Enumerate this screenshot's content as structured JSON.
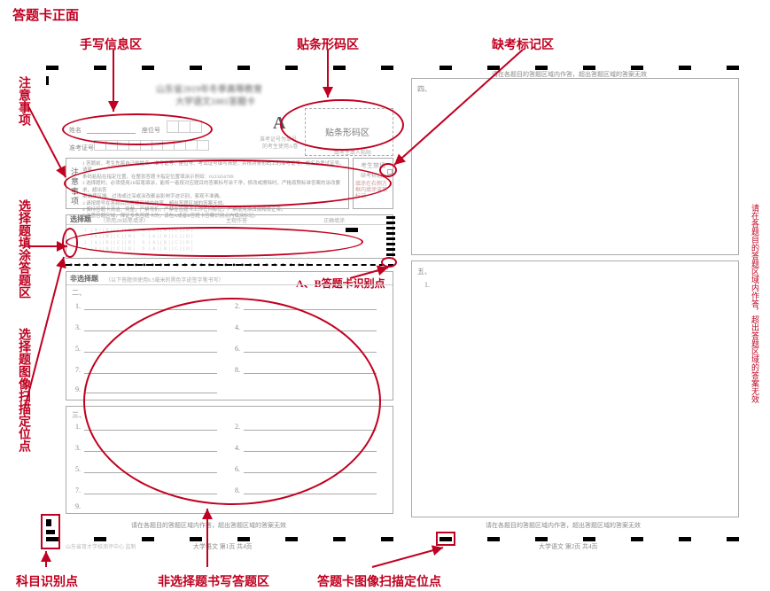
{
  "colors": {
    "accent": "#c00020",
    "box": "#aaaaaa",
    "text_light": "#888888"
  },
  "title": "答题卡正面",
  "callouts": {
    "handwrite": "手写信息区",
    "barcode": "贴条形码区",
    "absent": "缺考标记区",
    "notice": "注意事项",
    "choice_fill": "选择题填涂答题区",
    "choice_scan": "选择题图像扫描定位点",
    "subject_id": "科目识别点",
    "nonchoice_write": "非选择题书写答题区",
    "sheet_scan": "答题卡图像扫描定位点",
    "ab_id": "A、B答题卡识别点"
  },
  "sheet": {
    "exam_title_1": "山东省2019年冬季高等教育",
    "exam_title_2": "大学语文1001答题卡",
    "a_label": "A",
    "a_sub1": "准考证号为单号",
    "a_sub2": "的考生使用A卷",
    "barcode_box": "贴条形码区",
    "barcode_sub": "由考生本人粘贴",
    "name_label": "姓名",
    "seat_label": "座位号",
    "exam_id_label": "准考证号",
    "notice_header": "注意事项",
    "absent_label": "考生禁填",
    "absent_sub1": "缺考标记",
    "absent_sub2": "填涂在右侧方框内填涂该项标记",
    "choice_header": "选择题",
    "choice_sub": "（须用2B铅笔填涂）",
    "col_a": "主观作答",
    "col_b": "正确填涂",
    "nonchoice_header": "非选择题",
    "nonchoice_sub": "（以下答题须使用0.5毫米的黑色字迹签字笔书写）",
    "q2": "二、",
    "q3": "三、",
    "q4": "四、",
    "q5": "五、",
    "q5_1": "1.",
    "warning": "请在各题目的答题区域内作答，超出答题区域的答案无效",
    "footer_left": "山东省育才学校测评中心  监制",
    "footer_mid_l": "大学语文    第1页  共4页",
    "footer_mid_r": "大学语文    第2页  共4页",
    "right_warning": "请在各题目的答题区域内作答，超出答题区域的答案无效"
  },
  "notice_lines": [
    "1 答题前，考生先将自己的姓名、准考证号、座位号、考试证号填写清楚，并核对条形码上的准考证号、姓名及考试证号。请将",
    "   条码粘贴在指定位置，在整张答题卡指定位置填涂示例如：0123456789",
    "2 选择题时，必须使用2B铅笔填涂，能将一者按对应题目的答案标号涂干净，修改或擦除时，严格按照标准答案的涂改要求，超出答",
    "   案选择区域、过浅或过深或涂改都会影响字迹识别，客观不准确。",
    "3 请按题号在各题目的答题区域内作答，超出答题区域的答案无效。",
    "4 保持答题卡清洁、完整，严禁弯折。严禁在答题卡上作任何标记，严禁使用涂改液和修正带。",
    "5 注意答题区域，保证多色答题卡的，请在A或者B答题卡答案识别点内填涂标记。"
  ]
}
